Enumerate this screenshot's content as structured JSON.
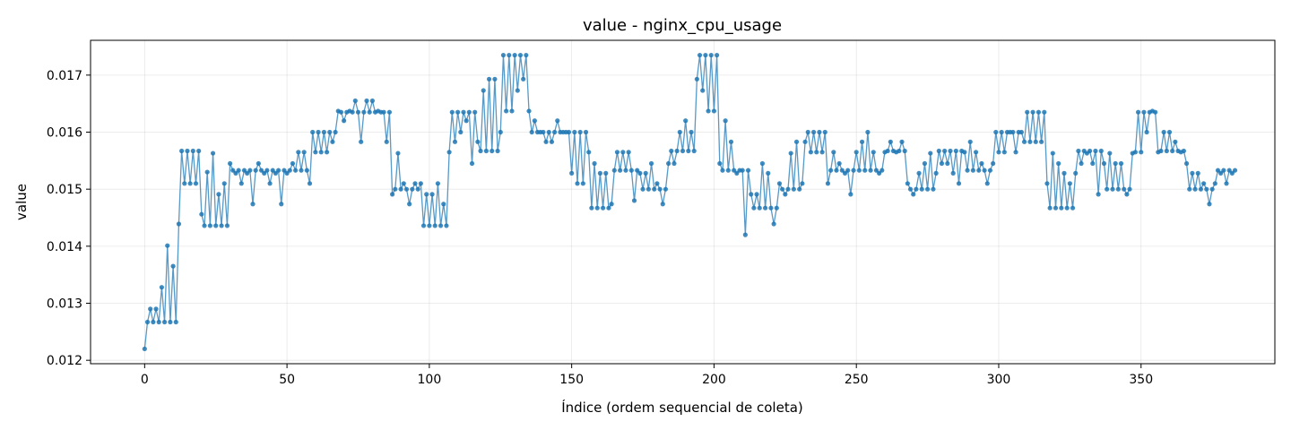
{
  "chart_data": {
    "type": "line",
    "title": "value - nginx_cpu_usage",
    "xlabel": "Índice (ordem sequencial de coleta)",
    "ylabel": "value",
    "xlim": [
      -19,
      397
    ],
    "ylim": [
      0.01194,
      0.01761
    ],
    "x_ticks": [
      0,
      50,
      100,
      150,
      200,
      250,
      300,
      350
    ],
    "x_tick_labels": [
      "0",
      "50",
      "100",
      "150",
      "200",
      "250",
      "300",
      "350"
    ],
    "y_ticks": [
      0.012,
      0.013,
      0.014,
      0.015,
      0.016,
      0.017
    ],
    "y_tick_labels": [
      "0.012",
      "0.013",
      "0.014",
      "0.015",
      "0.016",
      "0.017"
    ],
    "grid": true,
    "color": "#1f77b4",
    "series": [
      {
        "values": [
          0.0122,
          0.01267,
          0.0129,
          0.01267,
          0.0129,
          0.01267,
          0.01328,
          0.01267,
          0.01401,
          0.01267,
          0.01365,
          0.01267,
          0.01439,
          0.01567,
          0.0151,
          0.01567,
          0.0151,
          0.01567,
          0.0151,
          0.01567,
          0.01456,
          0.01436,
          0.0153,
          0.01436,
          0.01563,
          0.01436,
          0.01491,
          0.01436,
          0.0151,
          0.01436,
          0.01545,
          0.01533,
          0.01528,
          0.01533,
          0.0151,
          0.01533,
          0.01528,
          0.01533,
          0.01474,
          0.01533,
          0.01545,
          0.01533,
          0.01528,
          0.01533,
          0.0151,
          0.01533,
          0.01528,
          0.01533,
          0.01474,
          0.01533,
          0.01528,
          0.01533,
          0.01545,
          0.01533,
          0.01565,
          0.01533,
          0.01565,
          0.01533,
          0.0151,
          0.016,
          0.01565,
          0.016,
          0.01565,
          0.016,
          0.01565,
          0.016,
          0.01583,
          0.016,
          0.01637,
          0.01635,
          0.0162,
          0.01635,
          0.01637,
          0.01635,
          0.01655,
          0.01635,
          0.01583,
          0.01635,
          0.01655,
          0.01635,
          0.01655,
          0.01635,
          0.01637,
          0.01635,
          0.01635,
          0.01583,
          0.01635,
          0.01491,
          0.015,
          0.01563,
          0.015,
          0.0151,
          0.015,
          0.01474,
          0.015,
          0.0151,
          0.015,
          0.0151,
          0.01436,
          0.01491,
          0.01436,
          0.01491,
          0.01436,
          0.0151,
          0.01436,
          0.01474,
          0.01436,
          0.01565,
          0.01635,
          0.01583,
          0.01635,
          0.016,
          0.01635,
          0.0162,
          0.01635,
          0.01545,
          0.01635,
          0.01583,
          0.01567,
          0.01673,
          0.01567,
          0.01693,
          0.01567,
          0.01693,
          0.01567,
          0.016,
          0.01735,
          0.01637,
          0.01735,
          0.01637,
          0.01735,
          0.01673,
          0.01735,
          0.01693,
          0.01735,
          0.01637,
          0.016,
          0.0162,
          0.016,
          0.016,
          0.016,
          0.01583,
          0.016,
          0.01583,
          0.016,
          0.0162,
          0.016,
          0.016,
          0.016,
          0.016,
          0.01528,
          0.016,
          0.0151,
          0.016,
          0.0151,
          0.016,
          0.01565,
          0.01467,
          0.01545,
          0.01467,
          0.01528,
          0.01467,
          0.01528,
          0.01467,
          0.01474,
          0.01533,
          0.01565,
          0.01533,
          0.01565,
          0.01533,
          0.01565,
          0.01533,
          0.0148,
          0.01533,
          0.01528,
          0.015,
          0.01528,
          0.015,
          0.01545,
          0.015,
          0.0151,
          0.015,
          0.01474,
          0.015,
          0.01545,
          0.01567,
          0.01545,
          0.01567,
          0.016,
          0.01567,
          0.0162,
          0.01567,
          0.016,
          0.01567,
          0.01693,
          0.01735,
          0.01673,
          0.01735,
          0.01637,
          0.01735,
          0.01637,
          0.01735,
          0.01545,
          0.01533,
          0.0162,
          0.01533,
          0.01583,
          0.01533,
          0.01528,
          0.01533,
          0.01533,
          0.0142,
          0.01533,
          0.01491,
          0.01467,
          0.01491,
          0.01467,
          0.01545,
          0.01467,
          0.01528,
          0.01467,
          0.01439,
          0.01467,
          0.0151,
          0.015,
          0.01491,
          0.015,
          0.01563,
          0.015,
          0.01583,
          0.015,
          0.0151,
          0.01583,
          0.016,
          0.01565,
          0.016,
          0.01565,
          0.016,
          0.01565,
          0.016,
          0.0151,
          0.01533,
          0.01565,
          0.01533,
          0.01545,
          0.01533,
          0.01528,
          0.01533,
          0.01491,
          0.01533,
          0.01565,
          0.01533,
          0.01583,
          0.01533,
          0.016,
          0.01533,
          0.01565,
          0.01533,
          0.01528,
          0.01533,
          0.01565,
          0.01567,
          0.01583,
          0.01567,
          0.01565,
          0.01567,
          0.01583,
          0.01567,
          0.0151,
          0.015,
          0.01491,
          0.015,
          0.01528,
          0.015,
          0.01545,
          0.015,
          0.01563,
          0.015,
          0.01528,
          0.01567,
          0.01545,
          0.01567,
          0.01545,
          0.01567,
          0.01528,
          0.01567,
          0.0151,
          0.01567,
          0.01565,
          0.01533,
          0.01583,
          0.01533,
          0.01565,
          0.01533,
          0.01545,
          0.01533,
          0.0151,
          0.01533,
          0.01545,
          0.016,
          0.01565,
          0.016,
          0.01565,
          0.016,
          0.016,
          0.016,
          0.01565,
          0.016,
          0.016,
          0.01583,
          0.01635,
          0.01583,
          0.01635,
          0.01583,
          0.01635,
          0.01583,
          0.01635,
          0.0151,
          0.01467,
          0.01563,
          0.01467,
          0.01545,
          0.01467,
          0.01528,
          0.01467,
          0.0151,
          0.01467,
          0.01528,
          0.01567,
          0.01545,
          0.01567,
          0.01563,
          0.01567,
          0.01545,
          0.01567,
          0.01491,
          0.01567,
          0.01545,
          0.015,
          0.01563,
          0.015,
          0.01545,
          0.015,
          0.01545,
          0.015,
          0.01491,
          0.015,
          0.01563,
          0.01565,
          0.01635,
          0.01565,
          0.01635,
          0.016,
          0.01635,
          0.01637,
          0.01635,
          0.01565,
          0.01567,
          0.016,
          0.01567,
          0.016,
          0.01567,
          0.01583,
          0.01567,
          0.01565,
          0.01567,
          0.01545,
          0.015,
          0.01528,
          0.015,
          0.01528,
          0.015,
          0.0151,
          0.015,
          0.01474,
          0.015,
          0.0151,
          0.01533,
          0.01528,
          0.01533,
          0.0151,
          0.01533,
          0.01528,
          0.01533
        ]
      }
    ]
  }
}
